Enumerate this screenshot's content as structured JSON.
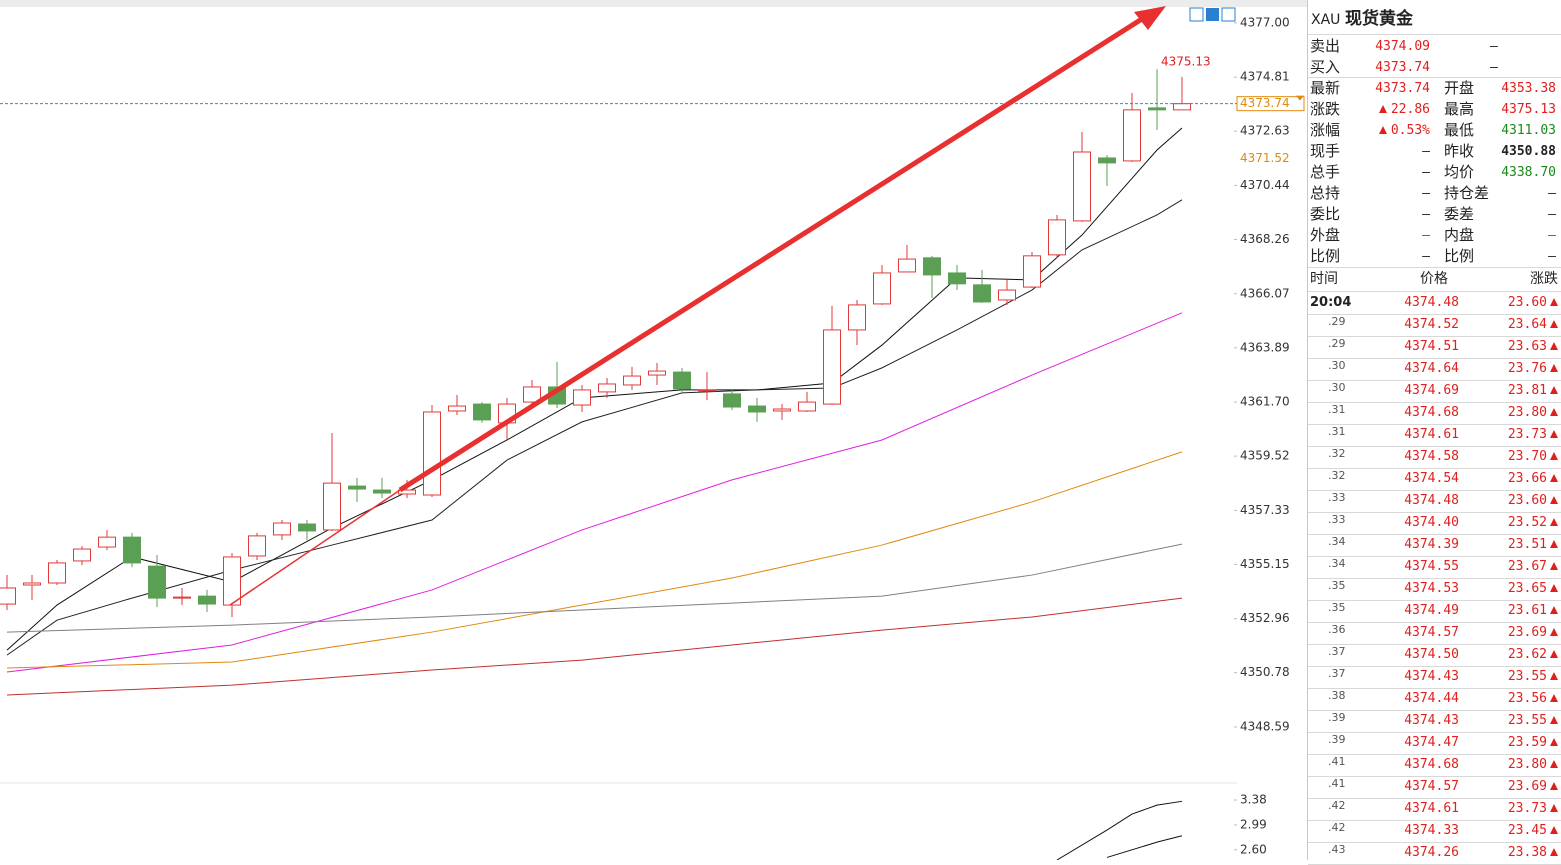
{
  "chart_data": [
    {
      "type": "candlestick",
      "up_color": "#e03a3a",
      "down_color": "#5b9f55",
      "open": [
        4353.55,
        4354.32,
        4354.4,
        4355.29,
        4355.85,
        4356.25,
        4355.08,
        4353.79,
        4353.87,
        4353.51,
        4355.49,
        4356.34,
        4356.78,
        4356.54,
        4358.31,
        4358.15,
        4357.99,
        4357.95,
        4361.34,
        4361.62,
        4360.86,
        4361.7,
        4362.31,
        4361.58,
        4362.11,
        4362.39,
        4362.79,
        4362.91,
        4362.15,
        4362.03,
        4361.54,
        4361.34,
        4361.34,
        4361.62,
        4364.61,
        4365.66,
        4366.95,
        4367.52,
        4366.91,
        4366.43,
        4365.82,
        4366.34,
        4367.64,
        4369.01,
        4371.55,
        4371.43,
        4373.57,
        4373.49
      ],
      "high": [
        4354.72,
        4354.72,
        4355.33,
        4355.89,
        4356.54,
        4356.42,
        4355.53,
        4354.2,
        4354.12,
        4355.61,
        4356.42,
        4356.94,
        4356.94,
        4360.45,
        4358.64,
        4358.64,
        4358.56,
        4361.58,
        4361.99,
        4361.7,
        4361.87,
        4362.59,
        4363.32,
        4362.39,
        4362.67,
        4363.12,
        4363.28,
        4363.08,
        4362.91,
        4362.19,
        4361.87,
        4361.62,
        4362.11,
        4365.58,
        4365.82,
        4367.23,
        4368.04,
        4367.6,
        4367.23,
        4367.03,
        4366.63,
        4367.76,
        4369.25,
        4372.6,
        4371.67,
        4374.17,
        4375.13,
        4374.82
      ],
      "low": [
        4353.31,
        4353.71,
        4354.32,
        4355.12,
        4355.73,
        4355.04,
        4353.43,
        4353.51,
        4353.23,
        4353.03,
        4355.33,
        4356.13,
        4356.13,
        4356.5,
        4357.67,
        4357.83,
        4357.83,
        4357.87,
        4361.18,
        4360.86,
        4360.17,
        4361.46,
        4361.46,
        4361.3,
        4361.87,
        4362.19,
        4362.39,
        4362.11,
        4361.78,
        4361.38,
        4360.9,
        4360.98,
        4361.3,
        4361.58,
        4364.0,
        4365.62,
        4366.95,
        4365.9,
        4366.22,
        4365.7,
        4365.62,
        4366.3,
        4367.52,
        4368.97,
        4370.42,
        4371.39,
        4372.68,
        4373.49
      ],
      "close": [
        4354.2,
        4354.4,
        4355.21,
        4355.77,
        4356.25,
        4355.21,
        4353.79,
        4353.83,
        4353.55,
        4355.45,
        4356.3,
        4356.82,
        4356.5,
        4358.43,
        4358.19,
        4358.03,
        4358.15,
        4361.3,
        4361.54,
        4360.98,
        4361.62,
        4362.31,
        4361.62,
        4362.19,
        4362.43,
        4362.75,
        4362.95,
        4362.23,
        4362.19,
        4361.5,
        4361.3,
        4361.42,
        4361.7,
        4364.61,
        4365.62,
        4366.91,
        4367.47,
        4366.83,
        4366.47,
        4365.74,
        4366.22,
        4367.6,
        4369.05,
        4371.79,
        4371.35,
        4373.49,
        4373.49,
        4373.74
      ],
      "series": [
        {
          "color": "#111111",
          "x": [
            0,
            2,
            5,
            9,
            13,
            17,
            20,
            23,
            27,
            30,
            33,
            35,
            38,
            41,
            43,
            46,
            47
          ],
          "values": [
            4351.69,
            4353.51,
            4355.45,
            4354.44,
            4356.62,
            4358.56,
            4360.17,
            4361.87,
            4362.19,
            4362.19,
            4362.47,
            4364.0,
            4366.71,
            4366.63,
            4368.44,
            4371.87,
            4372.76
          ]
        },
        {
          "color": "#222222",
          "x": [
            0,
            2,
            5,
            9,
            13,
            17,
            20,
            23,
            27,
            30,
            33,
            35,
            38,
            41,
            43,
            46,
            47
          ],
          "values": [
            4351.49,
            4352.9,
            4353.79,
            4354.92,
            4355.93,
            4356.94,
            4359.36,
            4360.9,
            4362.07,
            4362.19,
            4362.27,
            4363.08,
            4364.61,
            4366.22,
            4367.84,
            4369.25,
            4369.86
          ]
        },
        {
          "color": "#e020e0",
          "x": [
            0,
            9,
            17,
            23,
            29,
            35,
            41,
            47
          ],
          "values": [
            4350.81,
            4351.9,
            4354.12,
            4356.54,
            4358.56,
            4360.17,
            4362.79,
            4365.3
          ]
        },
        {
          "color": "#e08a10",
          "x": [
            0,
            9,
            17,
            23,
            29,
            35,
            41,
            47
          ],
          "values": [
            4350.97,
            4351.21,
            4352.42,
            4353.51,
            4354.6,
            4355.93,
            4357.67,
            4359.69
          ]
        },
        {
          "color": "#808080",
          "x": [
            0,
            9,
            17,
            23,
            29,
            35,
            41,
            47
          ],
          "values": [
            4352.42,
            4352.7,
            4353.03,
            4353.31,
            4353.59,
            4353.87,
            4354.72,
            4355.97
          ]
        },
        {
          "color": "#c03030",
          "x": [
            0,
            9,
            17,
            23,
            29,
            35,
            41,
            47
          ],
          "values": [
            4349.88,
            4350.28,
            4350.89,
            4351.29,
            4351.9,
            4352.5,
            4353.03,
            4353.79
          ]
        }
      ],
      "current_price": 4373.74,
      "mark_price": 4371.52,
      "high_label": 4375.13,
      "ylim": [
        4346.33,
        4377.6
      ],
      "yticks": [
        {
          "value": 4377,
          "label": "4377.00"
        },
        4374.81,
        4372.63,
        4370.44,
        4368.26,
        4366.07,
        4363.89,
        {
          "value": 4361.7,
          "label": "4361.70"
        },
        4359.52,
        4357.33,
        4355.15,
        4352.96,
        4350.78,
        4348.59
      ],
      "grid": false
    },
    {
      "type": "line",
      "series": [
        {
          "color": "#111111",
          "x": [
            42,
            44,
            45,
            46,
            47
          ],
          "values": [
            2.44,
            2.91,
            3.16,
            3.3,
            3.36
          ]
        },
        {
          "color": "#111111",
          "x": [
            44,
            46,
            47
          ],
          "values": [
            2.48,
            2.72,
            2.82
          ]
        }
      ],
      "ylim": [
        2.44,
        3.6
      ],
      "yticks": [
        3.38,
        2.99,
        {
          "value": 2.6,
          "label": "2.60"
        }
      ],
      "grid": false
    }
  ],
  "quote_panel": {
    "symbol": "XAU",
    "name": "现货黄金",
    "rows": [
      [
        "卖出",
        "4374.09",
        "–"
      ],
      [
        "买入",
        "4373.74",
        "–"
      ],
      [
        "最新",
        "4373.74",
        "开盘",
        "4353.38"
      ],
      [
        "涨跌",
        "22.86",
        "最高",
        "4375.13"
      ],
      [
        "涨幅",
        "0.53%",
        "最低",
        "4311.03"
      ],
      [
        "现手",
        "–",
        "昨收",
        "4350.88"
      ],
      [
        "总手",
        "–",
        "均价",
        "4338.70"
      ],
      [
        "总持",
        "–",
        "持仓差",
        "–"
      ],
      [
        "委比",
        "–",
        "委差",
        "–"
      ],
      [
        "外盘",
        "–",
        "内盘",
        "–"
      ],
      [
        "比例",
        "–",
        "比例",
        "–"
      ]
    ]
  },
  "tick_table": {
    "headers": [
      "时间",
      "价格",
      "涨跌"
    ],
    "rows": [
      [
        "20:04",
        "4374.48",
        "23.60"
      ],
      [
        ".29",
        "4374.52",
        "23.64"
      ],
      [
        ".29",
        "4374.51",
        "23.63"
      ],
      [
        ".30",
        "4374.64",
        "23.76"
      ],
      [
        ".30",
        "4374.69",
        "23.81"
      ],
      [
        ".31",
        "4374.68",
        "23.80"
      ],
      [
        ".31",
        "4374.61",
        "23.73"
      ],
      [
        ".32",
        "4374.58",
        "23.70"
      ],
      [
        ".32",
        "4374.54",
        "23.66"
      ],
      [
        ".33",
        "4374.48",
        "23.60"
      ],
      [
        ".33",
        "4374.40",
        "23.52"
      ],
      [
        ".34",
        "4374.39",
        "23.51"
      ],
      [
        ".34",
        "4374.55",
        "23.67"
      ],
      [
        ".35",
        "4374.53",
        "23.65"
      ],
      [
        ".35",
        "4374.49",
        "23.61"
      ],
      [
        ".36",
        "4374.57",
        "23.69"
      ],
      [
        ".37",
        "4374.50",
        "23.62"
      ],
      [
        ".37",
        "4374.43",
        "23.55"
      ],
      [
        ".38",
        "4374.44",
        "23.56"
      ],
      [
        ".39",
        "4374.43",
        "23.55"
      ],
      [
        ".39",
        "4374.47",
        "23.59"
      ],
      [
        ".41",
        "4374.68",
        "23.80"
      ],
      [
        ".41",
        "4374.57",
        "23.69"
      ],
      [
        ".42",
        "4374.61",
        "23.73"
      ],
      [
        ".42",
        "4374.33",
        "23.45"
      ],
      [
        ".43",
        "4374.26",
        "23.38"
      ]
    ]
  }
}
